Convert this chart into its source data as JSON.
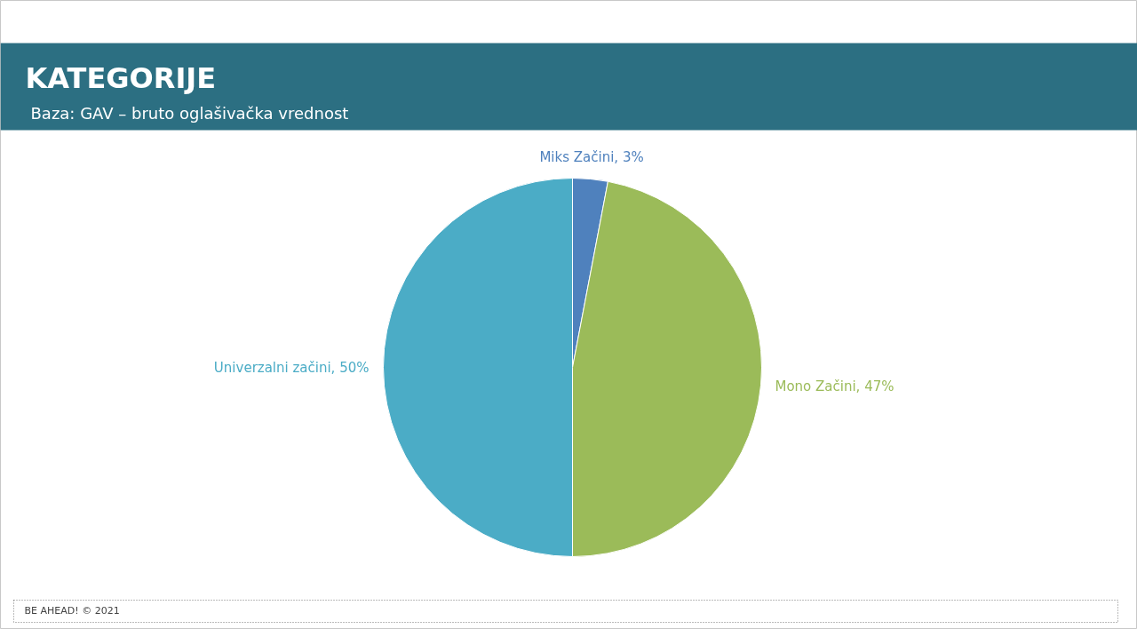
{
  "chart_data": {
    "type": "pie",
    "title": "KATEGORIJE",
    "subtitle": "Baza: GAV – bruto oglašivačka vrednost",
    "categories": [
      "Miks Začini",
      "Mono Začini",
      "Univerzalni začini"
    ],
    "values": [
      3,
      47,
      50
    ],
    "colors": [
      "#4f81bd",
      "#9bbb59",
      "#4bacc6"
    ],
    "value_labels": [
      "3%",
      "47%",
      "50%"
    ],
    "annotations": [
      "BE AHEAD! © 2021"
    ]
  }
}
